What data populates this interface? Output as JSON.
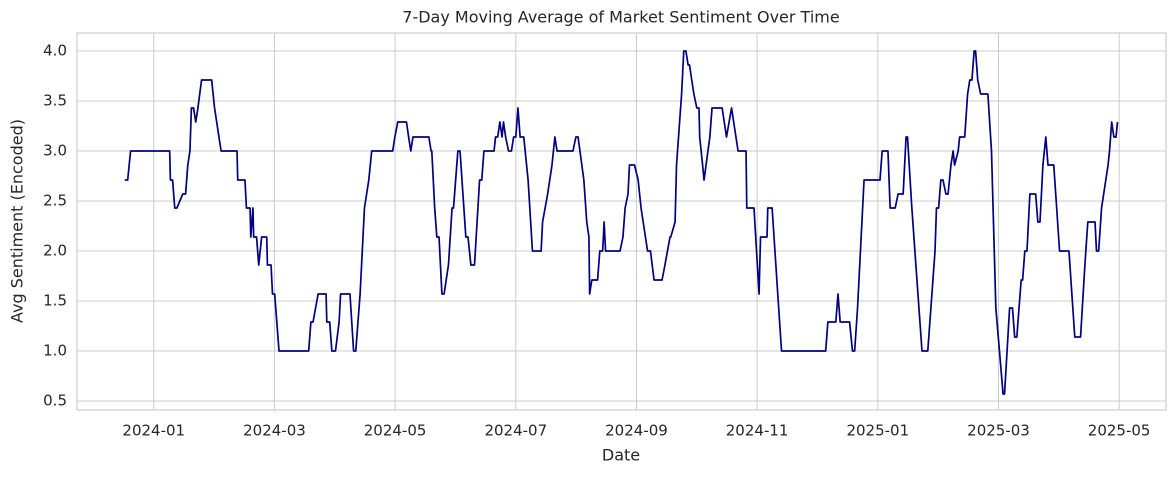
{
  "chart_data": {
    "type": "line",
    "title": "7-Day Moving Average of Market Sentiment Over Time",
    "xlabel": "Date",
    "ylabel": "Avg Sentiment (Encoded)",
    "color": "#000080",
    "grid": true,
    "xlim": [
      2023.894,
      2025.398
    ],
    "ylim": [
      0.41,
      4.18
    ],
    "xticks": [
      {
        "value": 2024.0,
        "label": "2024-01"
      },
      {
        "value": 2024.1667,
        "label": "2024-03"
      },
      {
        "value": 2024.3333,
        "label": "2024-05"
      },
      {
        "value": 2024.5,
        "label": "2024-07"
      },
      {
        "value": 2024.6667,
        "label": "2024-09"
      },
      {
        "value": 2024.8333,
        "label": "2024-11"
      },
      {
        "value": 2025.0,
        "label": "2025-01"
      },
      {
        "value": 2025.1667,
        "label": "2025-03"
      },
      {
        "value": 2025.3333,
        "label": "2025-05"
      }
    ],
    "yticks": [
      0.5,
      {
        "value": 1.0,
        "label": "1.0"
      },
      1.5,
      {
        "value": 2.0,
        "label": "2.0"
      },
      2.5,
      {
        "value": 3.0,
        "label": "3.0"
      },
      3.5,
      {
        "value": 4.0,
        "label": "4.0"
      }
    ],
    "x": [
      2023.96,
      2023.964,
      2023.968,
      2024.022,
      2024.023,
      2024.026,
      2024.029,
      2024.032,
      2024.04,
      2024.044,
      2024.047,
      2024.05,
      2024.052,
      2024.055,
      2024.058,
      2024.061,
      2024.066,
      2024.08,
      2024.084,
      2024.093,
      2024.115,
      2024.116,
      2024.126,
      2024.128,
      2024.133,
      2024.134,
      2024.137,
      2024.138,
      2024.142,
      2024.145,
      2024.149,
      2024.156,
      2024.157,
      2024.162,
      2024.164,
      2024.167,
      2024.173,
      2024.214,
      2024.217,
      2024.22,
      2024.227,
      2024.238,
      2024.239,
      2024.243,
      2024.246,
      2024.251,
      2024.256,
      2024.258,
      2024.271,
      2024.276,
      2024.279,
      2024.285,
      2024.291,
      2024.297,
      2024.301,
      2024.33,
      2024.333,
      2024.337,
      2024.349,
      2024.352,
      2024.355,
      2024.358,
      2024.38,
      2024.383,
      2024.384,
      2024.388,
      2024.391,
      2024.394,
      2024.398,
      2024.401,
      2024.407,
      2024.412,
      2024.414,
      2024.42,
      2024.423,
      2024.427,
      2024.431,
      2024.434,
      2024.438,
      2024.443,
      2024.45,
      2024.453,
      2024.456,
      2024.47,
      2024.472,
      2024.475,
      2024.478,
      2024.481,
      2024.483,
      2024.486,
      2024.49,
      2024.494,
      2024.497,
      2024.5,
      2024.503,
      2024.506,
      2024.511,
      2024.517,
      2024.523,
      2024.535,
      2024.537,
      2024.544,
      2024.55,
      2024.554,
      2024.557,
      2024.579,
      2024.583,
      2024.586,
      2024.594,
      2024.598,
      2024.601,
      2024.602,
      2024.605,
      2024.613,
      2024.616,
      2024.62,
      2024.622,
      2024.624,
      2024.644,
      2024.648,
      2024.651,
      2024.655,
      2024.657,
      2024.664,
      2024.669,
      2024.673,
      2024.682,
      2024.686,
      2024.691,
      2024.702,
      2024.706,
      2024.713,
      2024.714,
      2024.72,
      2024.722,
      2024.729,
      2024.732,
      2024.735,
      2024.738,
      2024.74,
      2024.743,
      2024.746,
      2024.75,
      2024.753,
      2024.754,
      2024.758,
      2024.76,
      2024.768,
      2024.771,
      2024.785,
      2024.791,
      2024.798,
      2024.807,
      2024.818,
      2024.819,
      2024.829,
      2024.836,
      2024.838,
      2024.847,
      2024.848,
      2024.854,
      2024.867,
      2024.928,
      2024.931,
      2024.942,
      2024.945,
      2024.948,
      2024.961,
      2024.965,
      2024.968,
      2024.972,
      2024.981,
      2025.003,
      2025.006,
      2025.014,
      2025.017,
      2025.024,
      2025.028,
      2025.035,
      2025.039,
      2025.041,
      2025.047,
      2025.061,
      2025.069,
      2025.079,
      2025.081,
      2025.084,
      2025.087,
      2025.09,
      2025.094,
      2025.097,
      2025.101,
      2025.104,
      2025.106,
      2025.111,
      2025.113,
      2025.12,
      2025.124,
      2025.127,
      2025.13,
      2025.133,
      2025.135,
      2025.138,
      2025.142,
      2025.152,
      2025.157,
      2025.163,
      2025.173,
      2025.175,
      2025.182,
      2025.186,
      2025.189,
      2025.192,
      2025.195,
      2025.198,
      2025.2,
      2025.203,
      2025.206,
      2025.21,
      2025.218,
      2025.221,
      2025.224,
      2025.228,
      2025.232,
      2025.235,
      2025.243,
      2025.251,
      2025.264,
      2025.272,
      2025.28,
      2025.286,
      2025.29,
      2025.3,
      2025.302,
      2025.305,
      2025.309,
      2025.318,
      2025.32,
      2025.323,
      2025.326,
      2025.329,
      2025.331
    ],
    "values": [
      2.71,
      2.71,
      3.0,
      3.0,
      2.71,
      2.71,
      2.43,
      2.43,
      2.57,
      2.57,
      2.86,
      3.0,
      3.43,
      3.43,
      3.29,
      3.43,
      3.71,
      3.71,
      3.43,
      3.0,
      3.0,
      2.71,
      2.71,
      2.43,
      2.43,
      2.14,
      2.43,
      2.14,
      2.14,
      1.86,
      2.14,
      2.14,
      1.86,
      1.86,
      1.57,
      1.57,
      1.0,
      1.0,
      1.29,
      1.29,
      1.57,
      1.57,
      1.29,
      1.29,
      1.0,
      1.0,
      1.29,
      1.57,
      1.57,
      1.0,
      1.0,
      1.57,
      2.43,
      2.71,
      3.0,
      3.0,
      3.14,
      3.29,
      3.29,
      3.14,
      3.0,
      3.14,
      3.14,
      3.0,
      3.0,
      2.43,
      2.14,
      2.14,
      1.57,
      1.57,
      1.86,
      2.43,
      2.43,
      3.0,
      3.0,
      2.57,
      2.14,
      2.14,
      1.86,
      1.86,
      2.71,
      2.71,
      3.0,
      3.0,
      3.14,
      3.14,
      3.29,
      3.14,
      3.29,
      3.14,
      3.0,
      3.0,
      3.14,
      3.14,
      3.43,
      3.14,
      3.14,
      2.71,
      2.0,
      2.0,
      2.29,
      2.57,
      2.86,
      3.14,
      3.0,
      3.0,
      3.14,
      3.14,
      2.71,
      2.29,
      2.14,
      1.57,
      1.71,
      1.71,
      2.0,
      2.0,
      2.29,
      2.0,
      2.0,
      2.14,
      2.43,
      2.57,
      2.86,
      2.86,
      2.71,
      2.43,
      2.0,
      2.0,
      1.71,
      1.71,
      1.86,
      2.14,
      2.14,
      2.29,
      2.86,
      3.57,
      4.0,
      4.0,
      3.86,
      3.86,
      3.71,
      3.57,
      3.43,
      3.43,
      3.14,
      2.86,
      2.71,
      3.14,
      3.43,
      3.43,
      3.14,
      3.43,
      3.0,
      3.0,
      2.43,
      2.43,
      1.57,
      2.14,
      2.14,
      2.43,
      2.43,
      1.0,
      1.0,
      1.29,
      1.29,
      1.57,
      1.29,
      1.29,
      1.0,
      1.0,
      1.43,
      2.71,
      2.71,
      3.0,
      3.0,
      2.43,
      2.43,
      2.57,
      2.57,
      3.14,
      3.14,
      2.43,
      1.0,
      1.0,
      2.0,
      2.43,
      2.43,
      2.71,
      2.71,
      2.57,
      2.57,
      2.86,
      3.0,
      2.86,
      3.0,
      3.14,
      3.14,
      3.57,
      3.71,
      3.71,
      4.0,
      4.0,
      3.71,
      3.57,
      3.57,
      3.0,
      1.43,
      0.57,
      0.57,
      1.43,
      1.43,
      1.14,
      1.14,
      1.43,
      1.71,
      1.71,
      2.0,
      2.0,
      2.57,
      2.57,
      2.29,
      2.29,
      2.86,
      3.14,
      2.86,
      2.86,
      2.0,
      2.0,
      1.14,
      1.14,
      1.86,
      2.29,
      2.29,
      2.0,
      2.0,
      2.43,
      2.86,
      3.0,
      3.29,
      3.14,
      3.14,
      3.29
    ]
  }
}
